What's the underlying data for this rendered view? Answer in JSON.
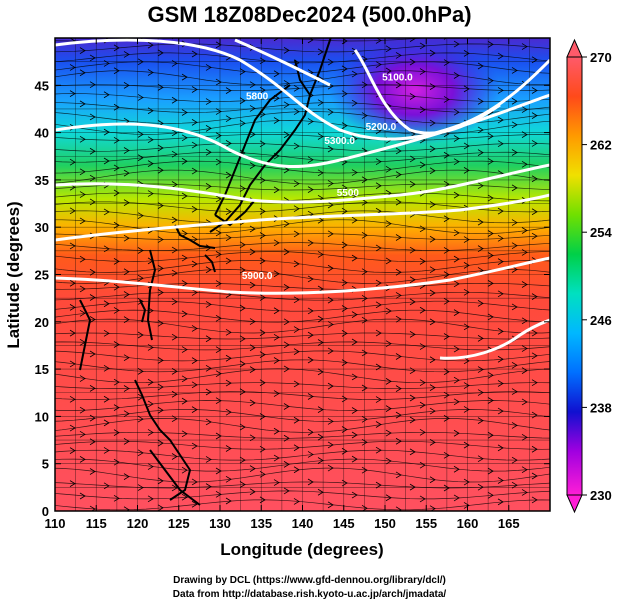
{
  "title": "GSM 18Z08Dec2024 (500.0hPa)",
  "map": {
    "x_axis": {
      "label": "Longitude (degrees)",
      "range": [
        110,
        170
      ],
      "ticks": [
        "110",
        "115",
        "120",
        "125",
        "130",
        "135",
        "140",
        "145",
        "150",
        "155",
        "160",
        "165"
      ]
    },
    "y_axis": {
      "label": "Latitude  (degrees)",
      "range": [
        0,
        50
      ],
      "ticks": [
        "0",
        "5",
        "10",
        "15",
        "20",
        "25",
        "30",
        "35",
        "40",
        "45"
      ]
    },
    "grid": true,
    "shaded_field": "temperature",
    "overlay": "streamlines",
    "contour_labels": [
      {
        "text": "5100.0",
        "lon": 151.5,
        "lat": 45.5
      },
      {
        "text": "5200.0",
        "lon": 149.5,
        "lat": 40.3
      },
      {
        "text": "5300.0",
        "lon": 144.5,
        "lat": 38.8
      },
      {
        "text": "5500",
        "lon": 145.5,
        "lat": 33.3
      },
      {
        "text": "5800",
        "lon": 134.5,
        "lat": 43.5
      },
      {
        "text": "5900.0",
        "lon": 134.5,
        "lat": 24.5
      }
    ]
  },
  "colorbar": {
    "labels": [
      "270",
      "262",
      "254",
      "246",
      "238",
      "230"
    ],
    "range": [
      230,
      270
    ],
    "colors": [
      "#ff1dd6",
      "#a000e0",
      "#1010d0",
      "#0070ff",
      "#00b8ff",
      "#00e0c0",
      "#00d048",
      "#70e000",
      "#f0e000",
      "#ff9a00",
      "#ff4a1a",
      "#ff5a6a"
    ]
  },
  "credits": {
    "line1": "Drawing by DCL (https://www.gfd-dennou.org/library/dcl/)",
    "line2": "Data from http://database.rish.kyoto-u.ac.jp/arch/jmadata/"
  }
}
